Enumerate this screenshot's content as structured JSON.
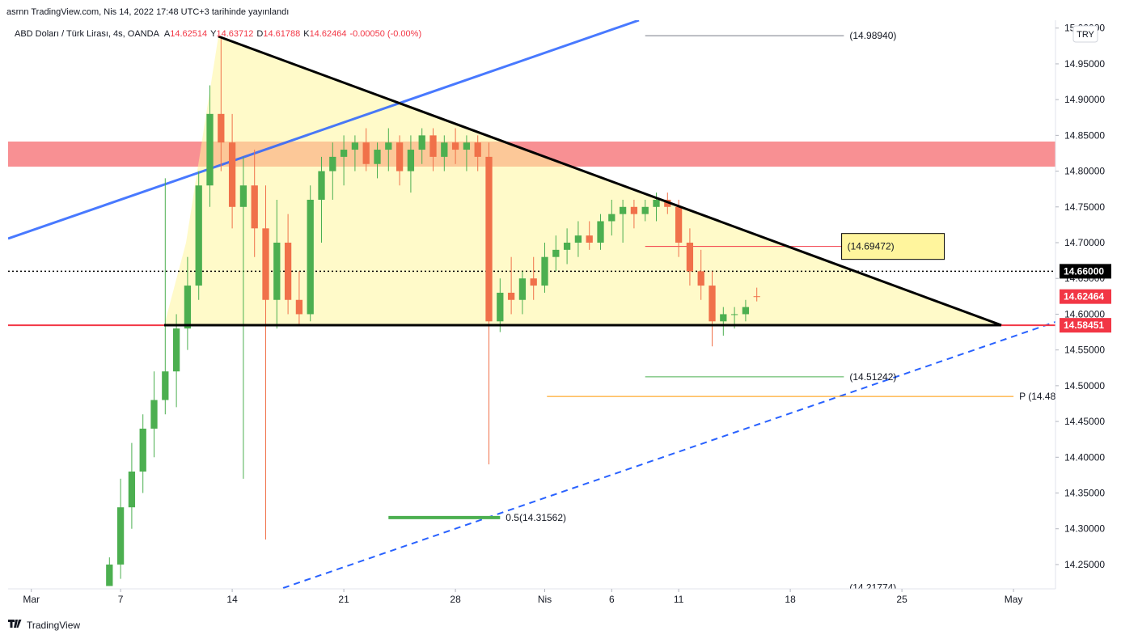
{
  "header": {
    "publisher": "asrnn TradingView.com, Nis 14, 2022 17:48 UTC+3 tarihinde yayınlandı",
    "symbol": "ABD Doları / Türk Lirası, 4s, OANDA",
    "ohlc": [
      {
        "label": "A",
        "value": 14.62514
      },
      {
        "label": "Y",
        "value": 14.63712
      },
      {
        "label": "D",
        "value": 14.61788
      },
      {
        "label": "K",
        "value": 14.62464
      }
    ],
    "change": "-0.00050 (-0.00%)",
    "currency": "TRY",
    "brand": "TradingView"
  },
  "chart_data": {
    "type": "candlestick",
    "up_color": "#4caf50",
    "down_color": "#f0714a",
    "x": [
      -0.5,
      0,
      0.5,
      1,
      1.5,
      2,
      2.5,
      3,
      3.5,
      4,
      4.5,
      5,
      5.5,
      6,
      6.5,
      7,
      7.5,
      8,
      8.5,
      9,
      9.5,
      10,
      10.5,
      11,
      11.5,
      12,
      12.5,
      13,
      13.5,
      14,
      14.5,
      15,
      15.5,
      16,
      16.5,
      17,
      17.5,
      18,
      18.5,
      19,
      19.5,
      20,
      20.5,
      21,
      21.5,
      22,
      22.5,
      23,
      23.5,
      24,
      24.5,
      25,
      25.5,
      26,
      26.5,
      27,
      27.5,
      28,
      28.5
    ],
    "open": [
      14.22,
      14.25,
      14.33,
      14.38,
      14.44,
      14.48,
      14.52,
      14.58,
      14.64,
      14.78,
      14.88,
      14.84,
      14.75,
      14.78,
      14.72,
      14.62,
      14.7,
      14.62,
      14.6,
      14.76,
      14.8,
      14.82,
      14.83,
      14.84,
      14.81,
      14.83,
      14.84,
      14.8,
      14.83,
      14.85,
      14.82,
      14.84,
      14.83,
      14.84,
      14.82,
      14.59,
      14.63,
      14.62,
      14.65,
      14.64,
      14.68,
      14.69,
      14.7,
      14.71,
      14.7,
      14.73,
      14.74,
      14.75,
      14.74,
      14.75,
      14.76,
      14.75,
      14.7,
      14.66,
      14.64,
      14.59,
      14.6,
      14.6,
      14.62514
    ],
    "high": [
      14.26,
      14.37,
      14.42,
      14.46,
      14.52,
      14.79,
      14.6,
      14.68,
      14.8,
      14.92,
      14.985,
      14.88,
      14.82,
      14.83,
      14.78,
      14.76,
      14.74,
      14.66,
      14.78,
      14.82,
      14.84,
      14.85,
      14.85,
      14.86,
      14.84,
      14.86,
      14.85,
      14.85,
      14.86,
      14.86,
      14.85,
      14.86,
      14.85,
      14.85,
      14.84,
      14.65,
      14.68,
      14.66,
      14.68,
      14.7,
      14.71,
      14.72,
      14.73,
      14.73,
      14.74,
      14.76,
      14.76,
      14.76,
      14.76,
      14.77,
      14.77,
      14.76,
      14.72,
      14.69,
      14.66,
      14.61,
      14.61,
      14.62,
      14.63712
    ],
    "low": [
      14.22,
      14.23,
      14.3,
      14.35,
      14.4,
      14.46,
      14.47,
      14.55,
      14.62,
      14.75,
      14.8,
      14.72,
      14.37,
      14.68,
      14.285,
      14.58,
      14.6,
      14.585,
      14.59,
      14.7,
      14.76,
      14.78,
      14.8,
      14.8,
      14.79,
      14.8,
      14.78,
      14.77,
      14.81,
      14.8,
      14.8,
      14.81,
      14.8,
      14.8,
      14.39,
      14.575,
      14.6,
      14.6,
      14.62,
      14.63,
      14.66,
      14.67,
      14.68,
      14.69,
      14.69,
      14.71,
      14.7,
      14.72,
      14.73,
      14.73,
      14.74,
      14.68,
      14.64,
      14.62,
      14.555,
      14.57,
      14.58,
      14.59,
      14.61788
    ],
    "close": [
      14.25,
      14.33,
      14.38,
      14.44,
      14.48,
      14.52,
      14.58,
      14.64,
      14.78,
      14.88,
      14.84,
      14.75,
      14.78,
      14.72,
      14.62,
      14.7,
      14.62,
      14.6,
      14.76,
      14.8,
      14.82,
      14.83,
      14.84,
      14.81,
      14.83,
      14.84,
      14.8,
      14.83,
      14.85,
      14.82,
      14.84,
      14.83,
      14.84,
      14.82,
      14.59,
      14.63,
      14.62,
      14.65,
      14.64,
      14.68,
      14.69,
      14.7,
      14.71,
      14.7,
      14.73,
      14.74,
      14.75,
      14.74,
      14.75,
      14.76,
      14.75,
      14.7,
      14.66,
      14.64,
      14.59,
      14.6,
      14.6,
      14.61,
      14.62464
    ],
    "xlim": [
      -5.04,
      41.88
    ],
    "xticks": [
      {
        "value": -4,
        "label": "Mar"
      },
      {
        "value": 0,
        "label": "7"
      },
      {
        "value": 5,
        "label": "14"
      },
      {
        "value": 10,
        "label": "21"
      },
      {
        "value": 15,
        "label": "28"
      },
      {
        "value": 19,
        "label": "Nis"
      },
      {
        "value": 22,
        "label": "6"
      },
      {
        "value": 25,
        "label": "11"
      },
      {
        "value": 30,
        "label": "18"
      },
      {
        "value": 35,
        "label": "25"
      },
      {
        "value": 40,
        "label": "May"
      }
    ],
    "ylim": [
      14.216,
      15.011
    ],
    "yticks": [
      {
        "value": 14.25,
        "label": "14.25000"
      },
      {
        "value": 14.3,
        "label": "14.30000"
      },
      {
        "value": 14.35,
        "label": "14.35000"
      },
      {
        "value": 14.4,
        "label": "14.40000"
      },
      {
        "value": 14.45,
        "label": "14.45000"
      },
      {
        "value": 14.5,
        "label": "14.50000"
      },
      {
        "value": 14.55,
        "label": "14.55000"
      },
      {
        "value": 14.6,
        "label": "14.60000"
      },
      {
        "value": 14.65,
        "label": "14.65000"
      },
      {
        "value": 14.7,
        "label": "14.70000"
      },
      {
        "value": 14.75,
        "label": "14.75000"
      },
      {
        "value": 14.8,
        "label": "14.80000"
      },
      {
        "value": 14.85,
        "label": "14.85000"
      },
      {
        "value": 14.9,
        "label": "14.90000"
      },
      {
        "value": 14.95,
        "label": "14.95000"
      },
      {
        "value": 15.0,
        "label": "15.00000"
      }
    ],
    "price_labels": [
      {
        "value": 14.66,
        "label": "14.66000",
        "color": "#000000"
      },
      {
        "value": 14.62464,
        "label": "14.62464",
        "color": "#f23645"
      },
      {
        "value": 14.58451,
        "label": "14.58451",
        "color": "#f23645"
      }
    ],
    "levels": [
      {
        "value": 14.9894,
        "label": "(14.98940)",
        "color": "#787b86"
      },
      {
        "value": 14.69472,
        "label": "(14.69472)",
        "color": "#f23645"
      },
      {
        "value": 14.51242,
        "label": "(14.51242)",
        "color": "#4caf50"
      },
      {
        "value": 14.485,
        "label": "P (14.48",
        "color": "#ff9800"
      },
      {
        "value": 14.31562,
        "label": "0.5(14.31562)",
        "color": "#4caf50"
      },
      {
        "value": 14.21774,
        "label": "(14.21774)",
        "color": "#2962ff"
      }
    ]
  }
}
